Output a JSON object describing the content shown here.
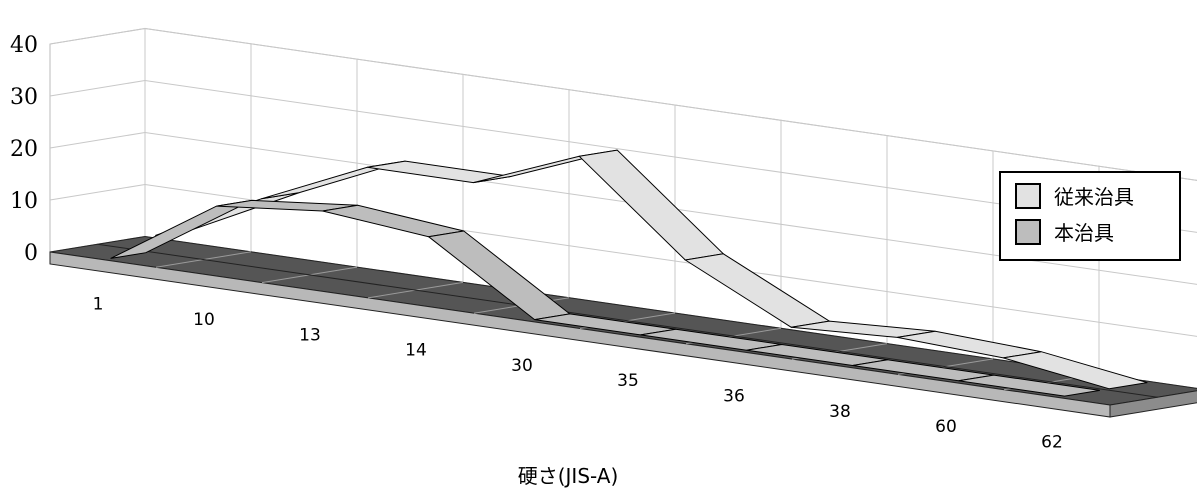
{
  "chart_data": {
    "type": "area",
    "style": "3d-ribbon",
    "categories": [
      "1",
      "10",
      "13",
      "14",
      "30",
      "35",
      "36",
      "38",
      "60",
      "62"
    ],
    "series": [
      {
        "name": "従来治具",
        "values": [
          3,
          13,
          22,
          22,
          30,
          13,
          3,
          4,
          3,
          0
        ],
        "color": "#e2e2e2"
      },
      {
        "name": "本治具",
        "values": [
          0,
          13,
          15,
          13,
          0,
          0,
          0,
          0,
          0,
          0
        ],
        "color": "#bdbdbd"
      }
    ],
    "xlabel": "硬さ(JIS-A)",
    "ylabel": "",
    "ylim": [
      0,
      40
    ],
    "yticks": [
      0,
      10,
      20,
      30,
      40
    ],
    "floor_color": "#555555",
    "grid": true,
    "legend_position": "right"
  }
}
